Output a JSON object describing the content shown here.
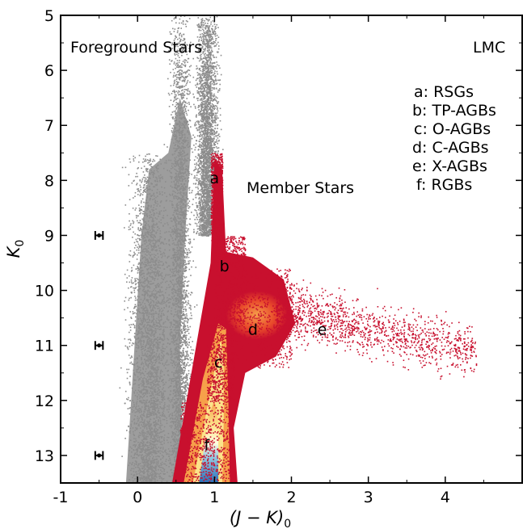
{
  "chart_data": {
    "type": "scatter",
    "title": "",
    "xlabel": "(J − K)",
    "xlabel_sub": "0",
    "ylabel": "K",
    "ylabel_sub": "0",
    "xlim": [
      -1,
      5
    ],
    "ylim": [
      13.5,
      5
    ],
    "y_inverted": true,
    "grid": false,
    "x_ticks": [
      -1,
      0,
      1,
      2,
      3,
      4
    ],
    "x_tick_labels": [
      "-1",
      "0",
      "1",
      "2",
      "3",
      "4"
    ],
    "y_ticks": [
      5,
      6,
      7,
      8,
      9,
      10,
      11,
      12,
      13
    ],
    "y_tick_labels": [
      "5",
      "6",
      "7",
      "8",
      "9",
      "10",
      "11",
      "12",
      "13"
    ],
    "text_annotations": {
      "foreground": "Foreground Stars",
      "galaxy": "LMC",
      "member": "Member Stars"
    },
    "legend_text": [
      "a: RSGs",
      "b: TP-AGBs",
      "c: O-AGBs",
      "d: C-AGBs",
      "e: X-AGBs",
      "f: RGBs"
    ],
    "region_labels": [
      {
        "label": "a",
        "x": 1.0,
        "y": 7.95
      },
      {
        "label": "b",
        "x": 1.13,
        "y": 9.55
      },
      {
        "label": "c",
        "x": 1.05,
        "y": 11.3
      },
      {
        "label": "d",
        "x": 1.5,
        "y": 10.7
      },
      {
        "label": "e",
        "x": 2.4,
        "y": 10.7
      },
      {
        "label": "f",
        "x": 0.9,
        "y": 12.8
      }
    ],
    "error_bars": [
      {
        "x": -0.5,
        "y": 9.0,
        "xerr": 0.05,
        "yerr": 0.08
      },
      {
        "x": -0.5,
        "y": 11.0,
        "xerr": 0.05,
        "yerr": 0.08
      },
      {
        "x": -0.5,
        "y": 13.0,
        "xerr": 0.05,
        "yerr": 0.08
      }
    ],
    "series": [
      {
        "name": "Foreground Stars",
        "color": "#8c8c8c",
        "regions": [
          {
            "x_center": 0.15,
            "x_width": 0.55,
            "y_top": 7.5,
            "y_bottom": 13.5
          },
          {
            "x_center": 0.55,
            "x_width": 0.3,
            "y_top": 5.0,
            "y_bottom": 13.5
          },
          {
            "x_center": 0.9,
            "x_width": 0.3,
            "y_top": 5.0,
            "y_bottom": 9.0
          }
        ]
      },
      {
        "name": "Member Stars",
        "color_scale": [
          "#c8102e",
          "#e8492b",
          "#f6a04a",
          "#fce38a",
          "#fffbe0",
          "#8ec6e0",
          "#2a6fb8"
        ],
        "branches": [
          {
            "name": "a",
            "x_range": [
              0.95,
              1.1
            ],
            "y_range": [
              7.5,
              9.2
            ]
          },
          {
            "name": "b",
            "x_range": [
              1.0,
              1.4
            ],
            "y_range": [
              9.0,
              10.6
            ]
          },
          {
            "name": "c",
            "x_range": [
              0.9,
              1.25
            ],
            "y_range": [
              10.6,
              12.0
            ]
          },
          {
            "name": "d",
            "x_range": [
              1.2,
              2.0
            ],
            "y_range": [
              9.6,
              11.4
            ]
          },
          {
            "name": "e",
            "x_range": [
              1.8,
              4.4
            ],
            "y_range": [
              9.0,
              12.4
            ]
          },
          {
            "name": "f",
            "x_range": [
              0.55,
              1.2
            ],
            "y_range": [
              12.0,
              13.5
            ]
          }
        ]
      }
    ]
  }
}
